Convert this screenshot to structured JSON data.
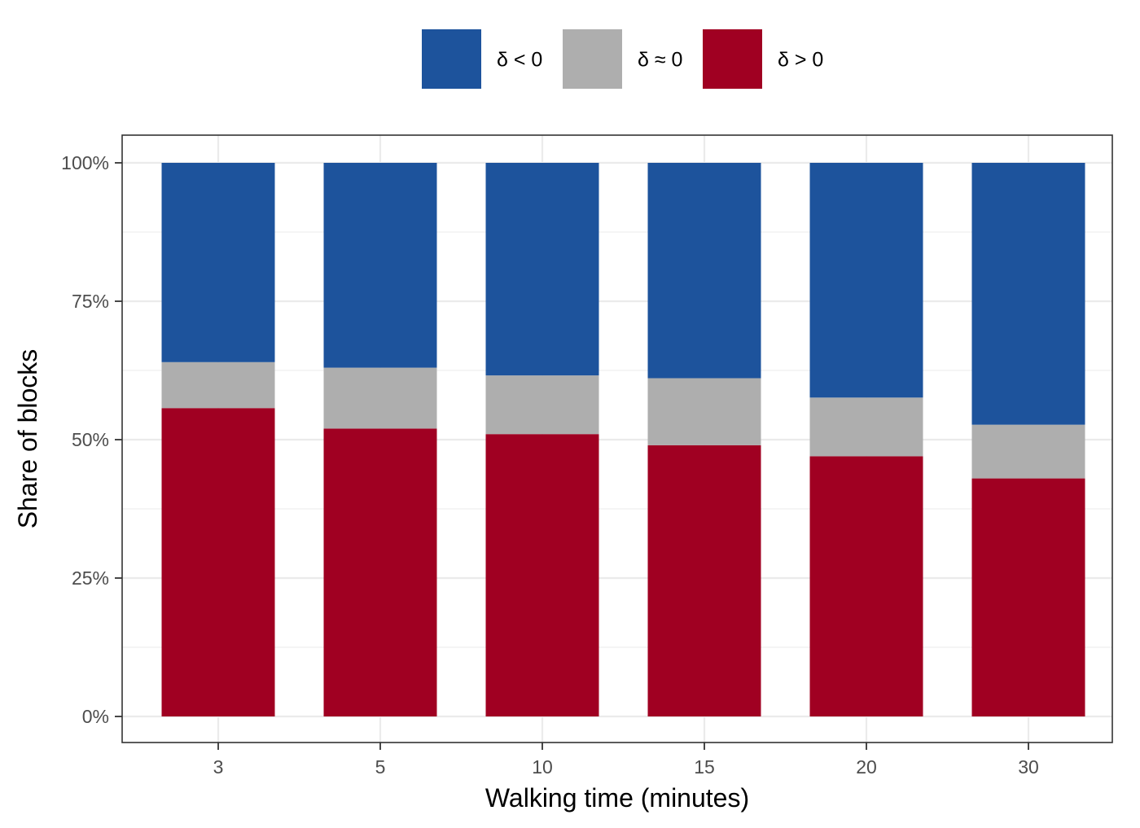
{
  "chart_data": {
    "type": "bar",
    "stacked": true,
    "categories": [
      "3",
      "5",
      "10",
      "15",
      "20",
      "30"
    ],
    "series": [
      {
        "name": "δ > 0",
        "color": "#A00022",
        "values": [
          55.7,
          52.0,
          51.0,
          49.0,
          47.0,
          43.0
        ]
      },
      {
        "name": "δ ≈ 0",
        "color": "#AEAEAE",
        "values": [
          8.3,
          11.0,
          10.6,
          12.1,
          10.6,
          9.7
        ]
      },
      {
        "name": "δ < 0",
        "color": "#1D539C",
        "values": [
          36.0,
          37.0,
          38.4,
          38.9,
          42.4,
          47.3
        ]
      }
    ],
    "legend_order": [
      "δ < 0",
      "δ ≈ 0",
      "δ > 0"
    ],
    "legend_position": "top",
    "xlabel": "Walking time (minutes)",
    "ylabel": "Share of blocks",
    "ylim": [
      0,
      100
    ],
    "yticks": [
      {
        "value": 0,
        "label": "0%"
      },
      {
        "value": 25,
        "label": "25%"
      },
      {
        "value": 50,
        "label": "50%"
      },
      {
        "value": 75,
        "label": "75%"
      },
      {
        "value": 100,
        "label": "100%"
      }
    ],
    "grid": true
  }
}
